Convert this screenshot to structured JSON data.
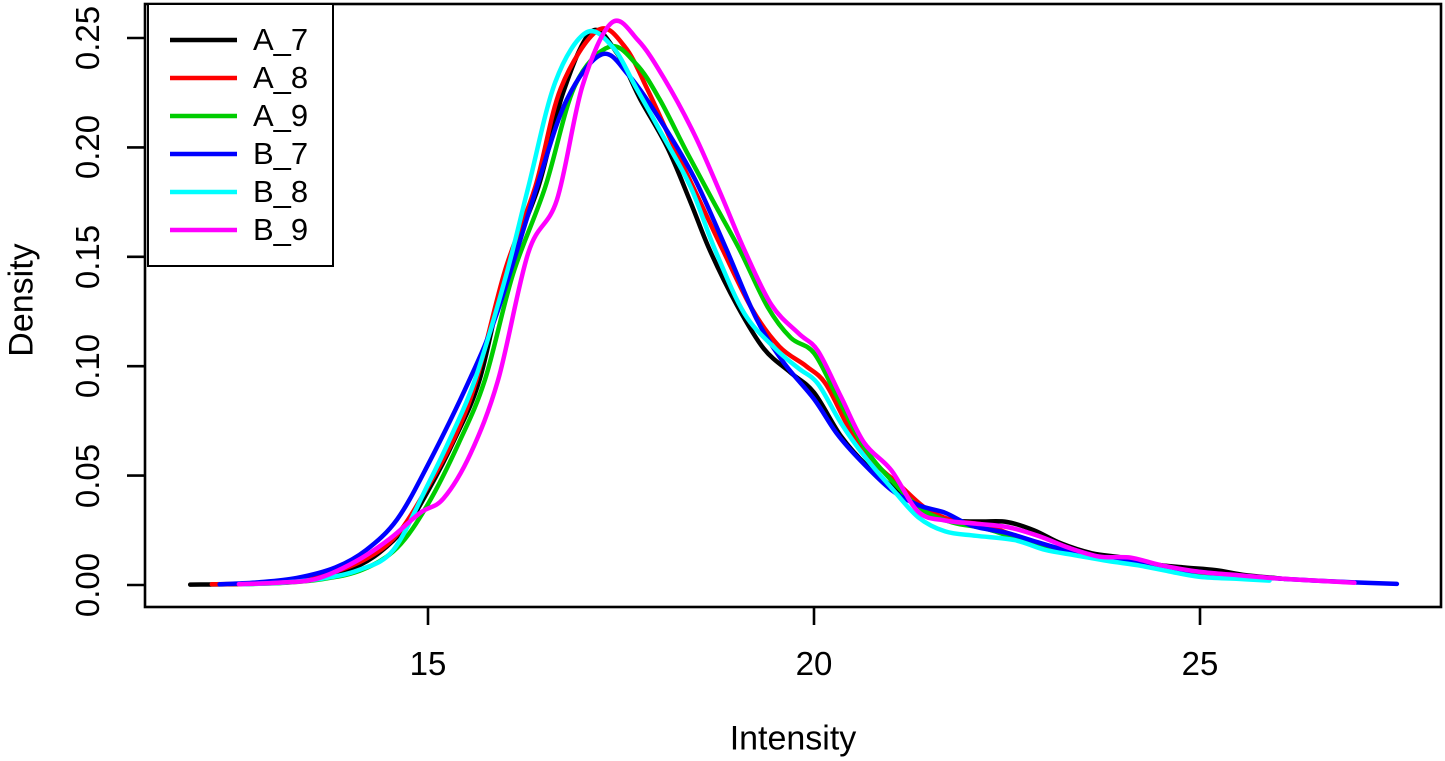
{
  "figure": {
    "background_color": "#ffffff",
    "axis_color": "#000000"
  },
  "chart_data": {
    "type": "line",
    "title": "",
    "xlabel": "Intensity",
    "ylabel": "Density",
    "xlim": [
      11.3,
      27.8
    ],
    "ylim": [
      0,
      0.26
    ],
    "grid": false,
    "legend_position": "top-left",
    "x_ticks": [
      15,
      20,
      25
    ],
    "x_tick_labels": [
      "15",
      "20",
      "25"
    ],
    "y_ticks": [
      0.0,
      0.05,
      0.1,
      0.15,
      0.2,
      0.25
    ],
    "y_tick_labels": [
      "0.00",
      "0.05",
      "0.10",
      "0.15",
      "0.20",
      "0.25"
    ],
    "series": [
      {
        "name": "A_7",
        "color": "#000000",
        "points": [
          [
            11.92,
            0.0002
          ],
          [
            12.4,
            0.0003
          ],
          [
            12.9,
            0.0008
          ],
          [
            13.4,
            0.002
          ],
          [
            13.9,
            0.006
          ],
          [
            14.3,
            0.013
          ],
          [
            14.7,
            0.026
          ],
          [
            15.0,
            0.043
          ],
          [
            15.35,
            0.067
          ],
          [
            15.67,
            0.094
          ],
          [
            16.0,
            0.142
          ],
          [
            16.43,
            0.182
          ],
          [
            16.75,
            0.225
          ],
          [
            17.12,
            0.253
          ],
          [
            17.45,
            0.243
          ],
          [
            17.75,
            0.222
          ],
          [
            18.1,
            0.2
          ],
          [
            18.4,
            0.175
          ],
          [
            18.65,
            0.153
          ],
          [
            19.0,
            0.128
          ],
          [
            19.35,
            0.108
          ],
          [
            19.7,
            0.097
          ],
          [
            20.0,
            0.088
          ],
          [
            20.35,
            0.068
          ],
          [
            20.7,
            0.054
          ],
          [
            21.05,
            0.044
          ],
          [
            21.45,
            0.0335
          ],
          [
            21.8,
            0.0295
          ],
          [
            22.15,
            0.029
          ],
          [
            22.5,
            0.0288
          ],
          [
            22.85,
            0.025
          ],
          [
            23.2,
            0.019
          ],
          [
            23.6,
            0.0145
          ],
          [
            24.0,
            0.0125
          ],
          [
            24.4,
            0.0095
          ],
          [
            24.8,
            0.008
          ],
          [
            25.2,
            0.0068
          ],
          [
            25.6,
            0.0045
          ],
          [
            26.1,
            0.0028
          ]
        ]
      },
      {
        "name": "A_8",
        "color": "#ff0000",
        "points": [
          [
            12.2,
            0.0003
          ],
          [
            12.7,
            0.0007
          ],
          [
            13.2,
            0.0018
          ],
          [
            13.7,
            0.005
          ],
          [
            14.2,
            0.012
          ],
          [
            14.6,
            0.023
          ],
          [
            15.0,
            0.045
          ],
          [
            15.35,
            0.068
          ],
          [
            15.63,
            0.094
          ],
          [
            16.0,
            0.144
          ],
          [
            16.39,
            0.182
          ],
          [
            16.72,
            0.227
          ],
          [
            17.2,
            0.2535
          ],
          [
            17.55,
            0.246
          ],
          [
            17.85,
            0.226
          ],
          [
            18.15,
            0.203
          ],
          [
            18.5,
            0.177
          ],
          [
            18.82,
            0.153
          ],
          [
            19.2,
            0.126
          ],
          [
            19.55,
            0.109
          ],
          [
            19.9,
            0.1
          ],
          [
            20.15,
            0.092
          ],
          [
            20.45,
            0.072
          ],
          [
            20.75,
            0.057
          ],
          [
            21.1,
            0.046
          ],
          [
            21.45,
            0.035
          ],
          [
            21.8,
            0.0295
          ],
          [
            22.2,
            0.0275
          ],
          [
            22.6,
            0.0225
          ],
          [
            23.0,
            0.0175
          ],
          [
            23.4,
            0.0142
          ],
          [
            23.8,
            0.0118
          ],
          [
            24.2,
            0.0098
          ],
          [
            24.6,
            0.0072
          ],
          [
            25.0,
            0.0057
          ],
          [
            25.6,
            0.003
          ]
        ]
      },
      {
        "name": "A_9",
        "color": "#00cd00",
        "points": [
          [
            12.65,
            0.0004
          ],
          [
            13.15,
            0.001
          ],
          [
            13.65,
            0.0028
          ],
          [
            14.15,
            0.007
          ],
          [
            14.6,
            0.017
          ],
          [
            15.0,
            0.037
          ],
          [
            15.4,
            0.065
          ],
          [
            15.74,
            0.094
          ],
          [
            16.1,
            0.142
          ],
          [
            16.52,
            0.182
          ],
          [
            16.9,
            0.228
          ],
          [
            17.35,
            0.246
          ],
          [
            17.7,
            0.238
          ],
          [
            18.0,
            0.222
          ],
          [
            18.35,
            0.198
          ],
          [
            18.7,
            0.175
          ],
          [
            19.04,
            0.153
          ],
          [
            19.4,
            0.127
          ],
          [
            19.7,
            0.113
          ],
          [
            20.0,
            0.106
          ],
          [
            20.3,
            0.086
          ],
          [
            20.65,
            0.063
          ],
          [
            21.0,
            0.048
          ],
          [
            21.4,
            0.0345
          ],
          [
            21.8,
            0.0285
          ],
          [
            22.2,
            0.026
          ],
          [
            22.6,
            0.0215
          ],
          [
            23.0,
            0.017
          ],
          [
            23.4,
            0.014
          ],
          [
            23.8,
            0.0115
          ],
          [
            24.2,
            0.0095
          ],
          [
            24.6,
            0.007
          ],
          [
            25.0,
            0.005
          ],
          [
            25.8,
            0.0025
          ]
        ]
      },
      {
        "name": "B_7",
        "color": "#0000ff",
        "points": [
          [
            12.3,
            0.0003
          ],
          [
            12.8,
            0.0012
          ],
          [
            13.3,
            0.0032
          ],
          [
            13.8,
            0.008
          ],
          [
            14.2,
            0.016
          ],
          [
            14.6,
            0.03
          ],
          [
            15.0,
            0.055
          ],
          [
            15.54,
            0.094
          ],
          [
            15.9,
            0.125
          ],
          [
            16.41,
            0.182
          ],
          [
            16.8,
            0.222
          ],
          [
            17.25,
            0.2425
          ],
          [
            17.6,
            0.233
          ],
          [
            18.0,
            0.213
          ],
          [
            18.45,
            0.186
          ],
          [
            18.87,
            0.153
          ],
          [
            19.25,
            0.122
          ],
          [
            19.6,
            0.102
          ],
          [
            20.0,
            0.085
          ],
          [
            20.3,
            0.069
          ],
          [
            20.6,
            0.057
          ],
          [
            21.0,
            0.0435
          ],
          [
            21.35,
            0.0365
          ],
          [
            21.7,
            0.033
          ],
          [
            22.05,
            0.027
          ],
          [
            22.5,
            0.0238
          ],
          [
            22.9,
            0.0195
          ],
          [
            23.3,
            0.0155
          ],
          [
            23.7,
            0.0125
          ],
          [
            24.1,
            0.0105
          ],
          [
            24.5,
            0.0078
          ],
          [
            25.0,
            0.006
          ],
          [
            25.5,
            0.0042
          ],
          [
            26.0,
            0.003
          ],
          [
            26.5,
            0.002
          ],
          [
            27.0,
            0.0012
          ],
          [
            27.55,
            0.0005
          ]
        ]
      },
      {
        "name": "B_8",
        "color": "#00ffff",
        "points": [
          [
            12.6,
            0.0004
          ],
          [
            13.1,
            0.001
          ],
          [
            13.6,
            0.0028
          ],
          [
            14.1,
            0.0068
          ],
          [
            14.55,
            0.016
          ],
          [
            15.0,
            0.046
          ],
          [
            15.3,
            0.068
          ],
          [
            15.61,
            0.094
          ],
          [
            16.0,
            0.14
          ],
          [
            16.3,
            0.182
          ],
          [
            16.65,
            0.23
          ],
          [
            17.05,
            0.2525
          ],
          [
            17.4,
            0.2455
          ],
          [
            17.7,
            0.227
          ],
          [
            18.0,
            0.208
          ],
          [
            18.4,
            0.182
          ],
          [
            18.72,
            0.153
          ],
          [
            19.1,
            0.124
          ],
          [
            19.5,
            0.108
          ],
          [
            19.8,
            0.099
          ],
          [
            20.05,
            0.092
          ],
          [
            20.35,
            0.074
          ],
          [
            20.65,
            0.059
          ],
          [
            21.0,
            0.0445
          ],
          [
            21.35,
            0.031
          ],
          [
            21.7,
            0.0245
          ],
          [
            22.1,
            0.0225
          ],
          [
            22.6,
            0.0205
          ],
          [
            23.0,
            0.016
          ],
          [
            23.4,
            0.0135
          ],
          [
            23.8,
            0.011
          ],
          [
            24.2,
            0.009
          ],
          [
            24.6,
            0.0062
          ],
          [
            25.0,
            0.0037
          ],
          [
            25.5,
            0.0028
          ],
          [
            25.9,
            0.002
          ]
        ]
      },
      {
        "name": "B_9",
        "color": "#ff00ff",
        "points": [
          [
            12.55,
            0.0004
          ],
          [
            13.05,
            0.001
          ],
          [
            13.55,
            0.0028
          ],
          [
            14.05,
            0.0105
          ],
          [
            14.5,
            0.021
          ],
          [
            14.9,
            0.033
          ],
          [
            15.2,
            0.0395
          ],
          [
            15.55,
            0.06
          ],
          [
            15.91,
            0.094
          ],
          [
            16.3,
            0.152
          ],
          [
            16.67,
            0.176
          ],
          [
            17.0,
            0.228
          ],
          [
            17.38,
            0.257
          ],
          [
            17.72,
            0.249
          ],
          [
            18.05,
            0.232
          ],
          [
            18.45,
            0.206
          ],
          [
            18.8,
            0.178
          ],
          [
            19.1,
            0.153
          ],
          [
            19.45,
            0.128
          ],
          [
            19.8,
            0.115
          ],
          [
            20.05,
            0.107
          ],
          [
            20.35,
            0.086
          ],
          [
            20.65,
            0.065
          ],
          [
            21.0,
            0.0525
          ],
          [
            21.35,
            0.0335
          ],
          [
            21.7,
            0.0295
          ],
          [
            22.1,
            0.028
          ],
          [
            22.5,
            0.0265
          ],
          [
            22.9,
            0.0225
          ],
          [
            23.3,
            0.017
          ],
          [
            23.7,
            0.013
          ],
          [
            24.1,
            0.0125
          ],
          [
            24.5,
            0.009
          ],
          [
            25.0,
            0.006
          ],
          [
            25.5,
            0.0045
          ],
          [
            26.0,
            0.003
          ],
          [
            26.5,
            0.002
          ],
          [
            27.0,
            0.001
          ]
        ]
      }
    ]
  }
}
